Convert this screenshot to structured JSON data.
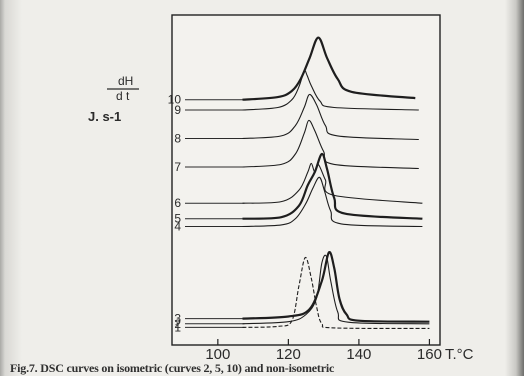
{
  "chart_data": {
    "type": "line",
    "title": "",
    "ylabel_lines": [
      "dH",
      "d t",
      "J. s-1"
    ],
    "xlabel": "T.°C",
    "xlim": [
      87,
      163
    ],
    "x_ticks": [
      100,
      120,
      140,
      160
    ],
    "x_tick_labels": [
      "100",
      "120",
      "140",
      "160"
    ],
    "x_unit_label": "T.°C",
    "grid": false,
    "series": [
      {
        "name": "1",
        "dashed": true,
        "bold": false,
        "baseline": 0.05,
        "points": [
          [
            107,
            0.05
          ],
          [
            117,
            0.07
          ],
          [
            121,
            0.18
          ],
          [
            123,
            0.85
          ],
          [
            124.8,
            1.4
          ],
          [
            126.5,
            1.0
          ],
          [
            128,
            0.45
          ],
          [
            129.5,
            0.12
          ],
          [
            133,
            0.04
          ],
          [
            160,
            0.03
          ]
        ]
      },
      {
        "name": "2",
        "dashed": false,
        "bold": false,
        "baseline": 0.12,
        "points": [
          [
            107,
            0.12
          ],
          [
            120,
            0.16
          ],
          [
            125,
            0.3
          ],
          [
            128,
            0.62
          ],
          [
            129.5,
            1.3
          ],
          [
            130.8,
            1.42
          ],
          [
            132,
            0.95
          ],
          [
            134,
            0.35
          ],
          [
            137,
            0.15
          ],
          [
            160,
            0.12
          ]
        ]
      },
      {
        "name": "3",
        "dashed": false,
        "bold": true,
        "baseline": 0.22,
        "points": [
          [
            107,
            0.22
          ],
          [
            120,
            0.26
          ],
          [
            126,
            0.4
          ],
          [
            129.5,
            0.95
          ],
          [
            131.5,
            1.5
          ],
          [
            133,
            1.2
          ],
          [
            134.5,
            0.6
          ],
          [
            136.5,
            0.3
          ],
          [
            140,
            0.18
          ],
          [
            160,
            0.16
          ]
        ]
      },
      {
        "name": "4",
        "dashed": false,
        "bold": false,
        "baseline": 2.0,
        "points": [
          [
            107,
            2.0
          ],
          [
            118,
            2.03
          ],
          [
            122,
            2.15
          ],
          [
            125,
            2.45
          ],
          [
            127,
            2.75
          ],
          [
            128.8,
            2.95
          ],
          [
            130.2,
            2.7
          ],
          [
            132,
            2.3
          ],
          [
            135,
            2.05
          ],
          [
            158,
            2.0
          ]
        ]
      },
      {
        "name": "5",
        "dashed": false,
        "bold": true,
        "baseline": 2.15,
        "points": [
          [
            107,
            2.15
          ],
          [
            118,
            2.18
          ],
          [
            123,
            2.4
          ],
          [
            125.5,
            2.8
          ],
          [
            127.5,
            3.05
          ],
          [
            129.5,
            3.4
          ],
          [
            131,
            3.1
          ],
          [
            133,
            2.55
          ],
          [
            136,
            2.25
          ],
          [
            158,
            2.15
          ]
        ]
      },
      {
        "name": "6",
        "dashed": false,
        "bold": false,
        "baseline": 2.45,
        "points": [
          [
            107,
            2.45
          ],
          [
            118,
            2.48
          ],
          [
            123,
            2.7
          ],
          [
            125.5,
            3.05
          ],
          [
            126.5,
            3.22
          ],
          [
            127.5,
            3.05
          ],
          [
            128.5,
            3.2
          ],
          [
            130.5,
            2.9
          ],
          [
            133,
            2.6
          ],
          [
            158,
            2.45
          ]
        ]
      },
      {
        "name": "7",
        "dashed": false,
        "bold": false,
        "baseline": 3.15,
        "points": [
          [
            107,
            3.15
          ],
          [
            118,
            3.2
          ],
          [
            122,
            3.4
          ],
          [
            124.5,
            3.8
          ],
          [
            125.8,
            4.05
          ],
          [
            127.5,
            3.85
          ],
          [
            130,
            3.45
          ],
          [
            133,
            3.2
          ],
          [
            157,
            3.12
          ]
        ]
      },
      {
        "name": "8",
        "dashed": false,
        "bold": false,
        "baseline": 3.7,
        "points": [
          [
            107,
            3.7
          ],
          [
            118,
            3.75
          ],
          [
            122,
            3.95
          ],
          [
            124.5,
            4.3
          ],
          [
            126,
            4.55
          ],
          [
            128,
            4.35
          ],
          [
            130.5,
            3.95
          ],
          [
            134,
            3.75
          ],
          [
            157,
            3.68
          ]
        ]
      },
      {
        "name": "9",
        "dashed": false,
        "bold": false,
        "baseline": 4.25,
        "points": [
          [
            107,
            4.25
          ],
          [
            117,
            4.3
          ],
          [
            121,
            4.45
          ],
          [
            123,
            4.7
          ],
          [
            124.5,
            5.0
          ],
          [
            125.3,
            4.92
          ],
          [
            126.5,
            4.72
          ],
          [
            129,
            4.42
          ],
          [
            133,
            4.3
          ],
          [
            157,
            4.25
          ]
        ]
      },
      {
        "name": "10",
        "dashed": false,
        "bold": true,
        "baseline": 4.45,
        "points": [
          [
            107,
            4.45
          ],
          [
            117,
            4.5
          ],
          [
            121,
            4.62
          ],
          [
            123.5,
            4.85
          ],
          [
            126,
            5.25
          ],
          [
            128.5,
            5.65
          ],
          [
            131,
            5.25
          ],
          [
            134,
            4.85
          ],
          [
            138,
            4.6
          ],
          [
            156,
            4.48
          ]
        ]
      }
    ],
    "curve_labels": [
      "10",
      "9",
      "8",
      "7",
      "6",
      "5",
      "4",
      "3",
      "2",
      "1"
    ]
  },
  "caption": "Fig.7. DSC curves on isometric (curves 2, 5, 10) and non-isometric"
}
